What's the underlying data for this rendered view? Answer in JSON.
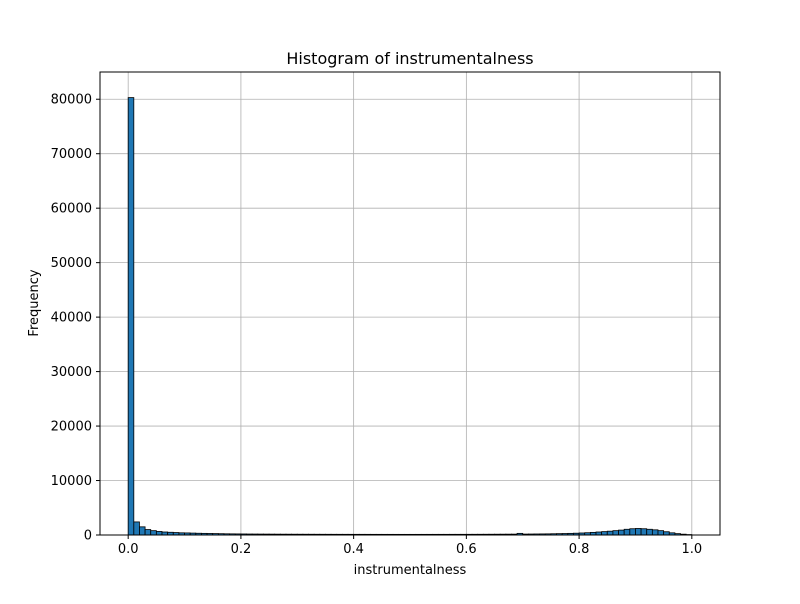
{
  "chart_data": {
    "type": "bar",
    "title": "Histogram of instrumentalness",
    "xlabel": "instrumentalness",
    "ylabel": "Frequency",
    "xlim": [
      -0.05,
      1.05
    ],
    "ylim": [
      0,
      85000
    ],
    "xticks": [
      0.0,
      0.2,
      0.4,
      0.6,
      0.8,
      1.0
    ],
    "xtick_labels": [
      "0.0",
      "0.2",
      "0.4",
      "0.6",
      "0.8",
      "1.0"
    ],
    "yticks": [
      0,
      10000,
      20000,
      30000,
      40000,
      50000,
      60000,
      70000,
      80000
    ],
    "ytick_labels": [
      "0",
      "10000",
      "20000",
      "30000",
      "40000",
      "50000",
      "60000",
      "70000",
      "80000"
    ],
    "grid": true,
    "bar_color": "#1f77b4",
    "edge_color": "#000000",
    "bin_start": 0.0,
    "bin_width": 0.01,
    "values": [
      80300,
      2400,
      1500,
      1000,
      800,
      650,
      550,
      500,
      450,
      400,
      380,
      350,
      320,
      300,
      280,
      260,
      240,
      220,
      210,
      200,
      190,
      180,
      175,
      170,
      165,
      160,
      155,
      150,
      148,
      145,
      142,
      140,
      138,
      135,
      132,
      130,
      128,
      126,
      125,
      124,
      123,
      122,
      121,
      120,
      119,
      118,
      117,
      116,
      115,
      115,
      115,
      116,
      117,
      118,
      119,
      120,
      121,
      122,
      123,
      125,
      127,
      130,
      133,
      136,
      140,
      145,
      150,
      155,
      160,
      300,
      170,
      180,
      190,
      200,
      210,
      230,
      250,
      270,
      300,
      330,
      370,
      420,
      480,
      550,
      620,
      700,
      800,
      900,
      1050,
      1150,
      1200,
      1150,
      1050,
      950,
      800,
      600,
      400,
      250,
      150,
      80
    ]
  }
}
